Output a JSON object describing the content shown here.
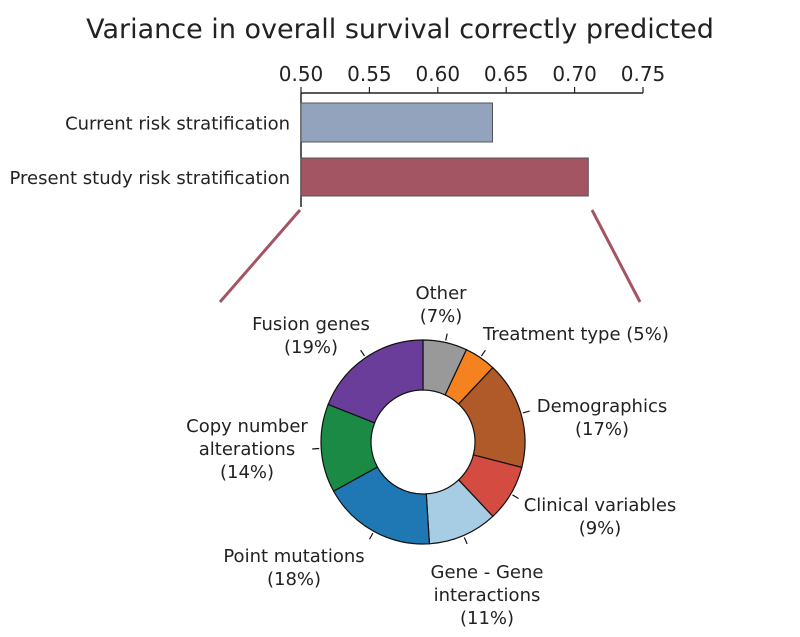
{
  "chart_data": [
    {
      "type": "bar",
      "orientation": "horizontal",
      "title": "Variance in overall survival correctly predicted",
      "categories": [
        "Current risk stratification",
        "Present study risk stratification"
      ],
      "values": [
        0.64,
        0.71
      ],
      "xlim": [
        0.5,
        0.75
      ],
      "xticks": [
        "0.50",
        "0.55",
        "0.60",
        "0.65",
        "0.70",
        "0.75"
      ],
      "colors": [
        "#93a3bd",
        "#a35563"
      ]
    },
    {
      "type": "pie",
      "subtype": "donut",
      "slices": [
        {
          "label": "Other",
          "pct_label": "(7%)",
          "value": 7,
          "color": "#999999"
        },
        {
          "label": "Treatment type",
          "pct_label": "(5%)",
          "value": 5,
          "color": "#f5821f"
        },
        {
          "label": "Demographics",
          "pct_label": "(17%)",
          "value": 17,
          "color": "#b05a2a"
        },
        {
          "label": "Clinical variables",
          "pct_label": "(9%)",
          "value": 9,
          "color": "#d44b42"
        },
        {
          "label": "Gene - Gene interactions",
          "pct_label": "(11%)",
          "value": 11,
          "color": "#a6cde3"
        },
        {
          "label": "Point mutations",
          "pct_label": "(18%)",
          "value": 18,
          "color": "#1f78b4"
        },
        {
          "label": "Copy number alterations",
          "pct_label": "(14%)",
          "value": 14,
          "color": "#1b8a45"
        },
        {
          "label": "Fusion genes",
          "pct_label": "(19%)",
          "value": 19,
          "color": "#6a3d9a"
        }
      ]
    }
  ],
  "label_lines": {
    "other": [
      "Other",
      "(7%)"
    ],
    "treatment": [
      "Treatment type (5%)"
    ],
    "demographics": [
      "Demographics",
      "(17%)"
    ],
    "clinical": [
      "Clinical variables",
      "(9%)"
    ],
    "genegene": [
      "Gene - Gene",
      "interactions",
      "(11%)"
    ],
    "point": [
      "Point mutations",
      "(18%)"
    ],
    "copy": [
      "Copy number",
      "alterations",
      "(14%)"
    ],
    "fusion": [
      "Fusion genes",
      "(19%)"
    ]
  },
  "connector_color": "#a35563"
}
